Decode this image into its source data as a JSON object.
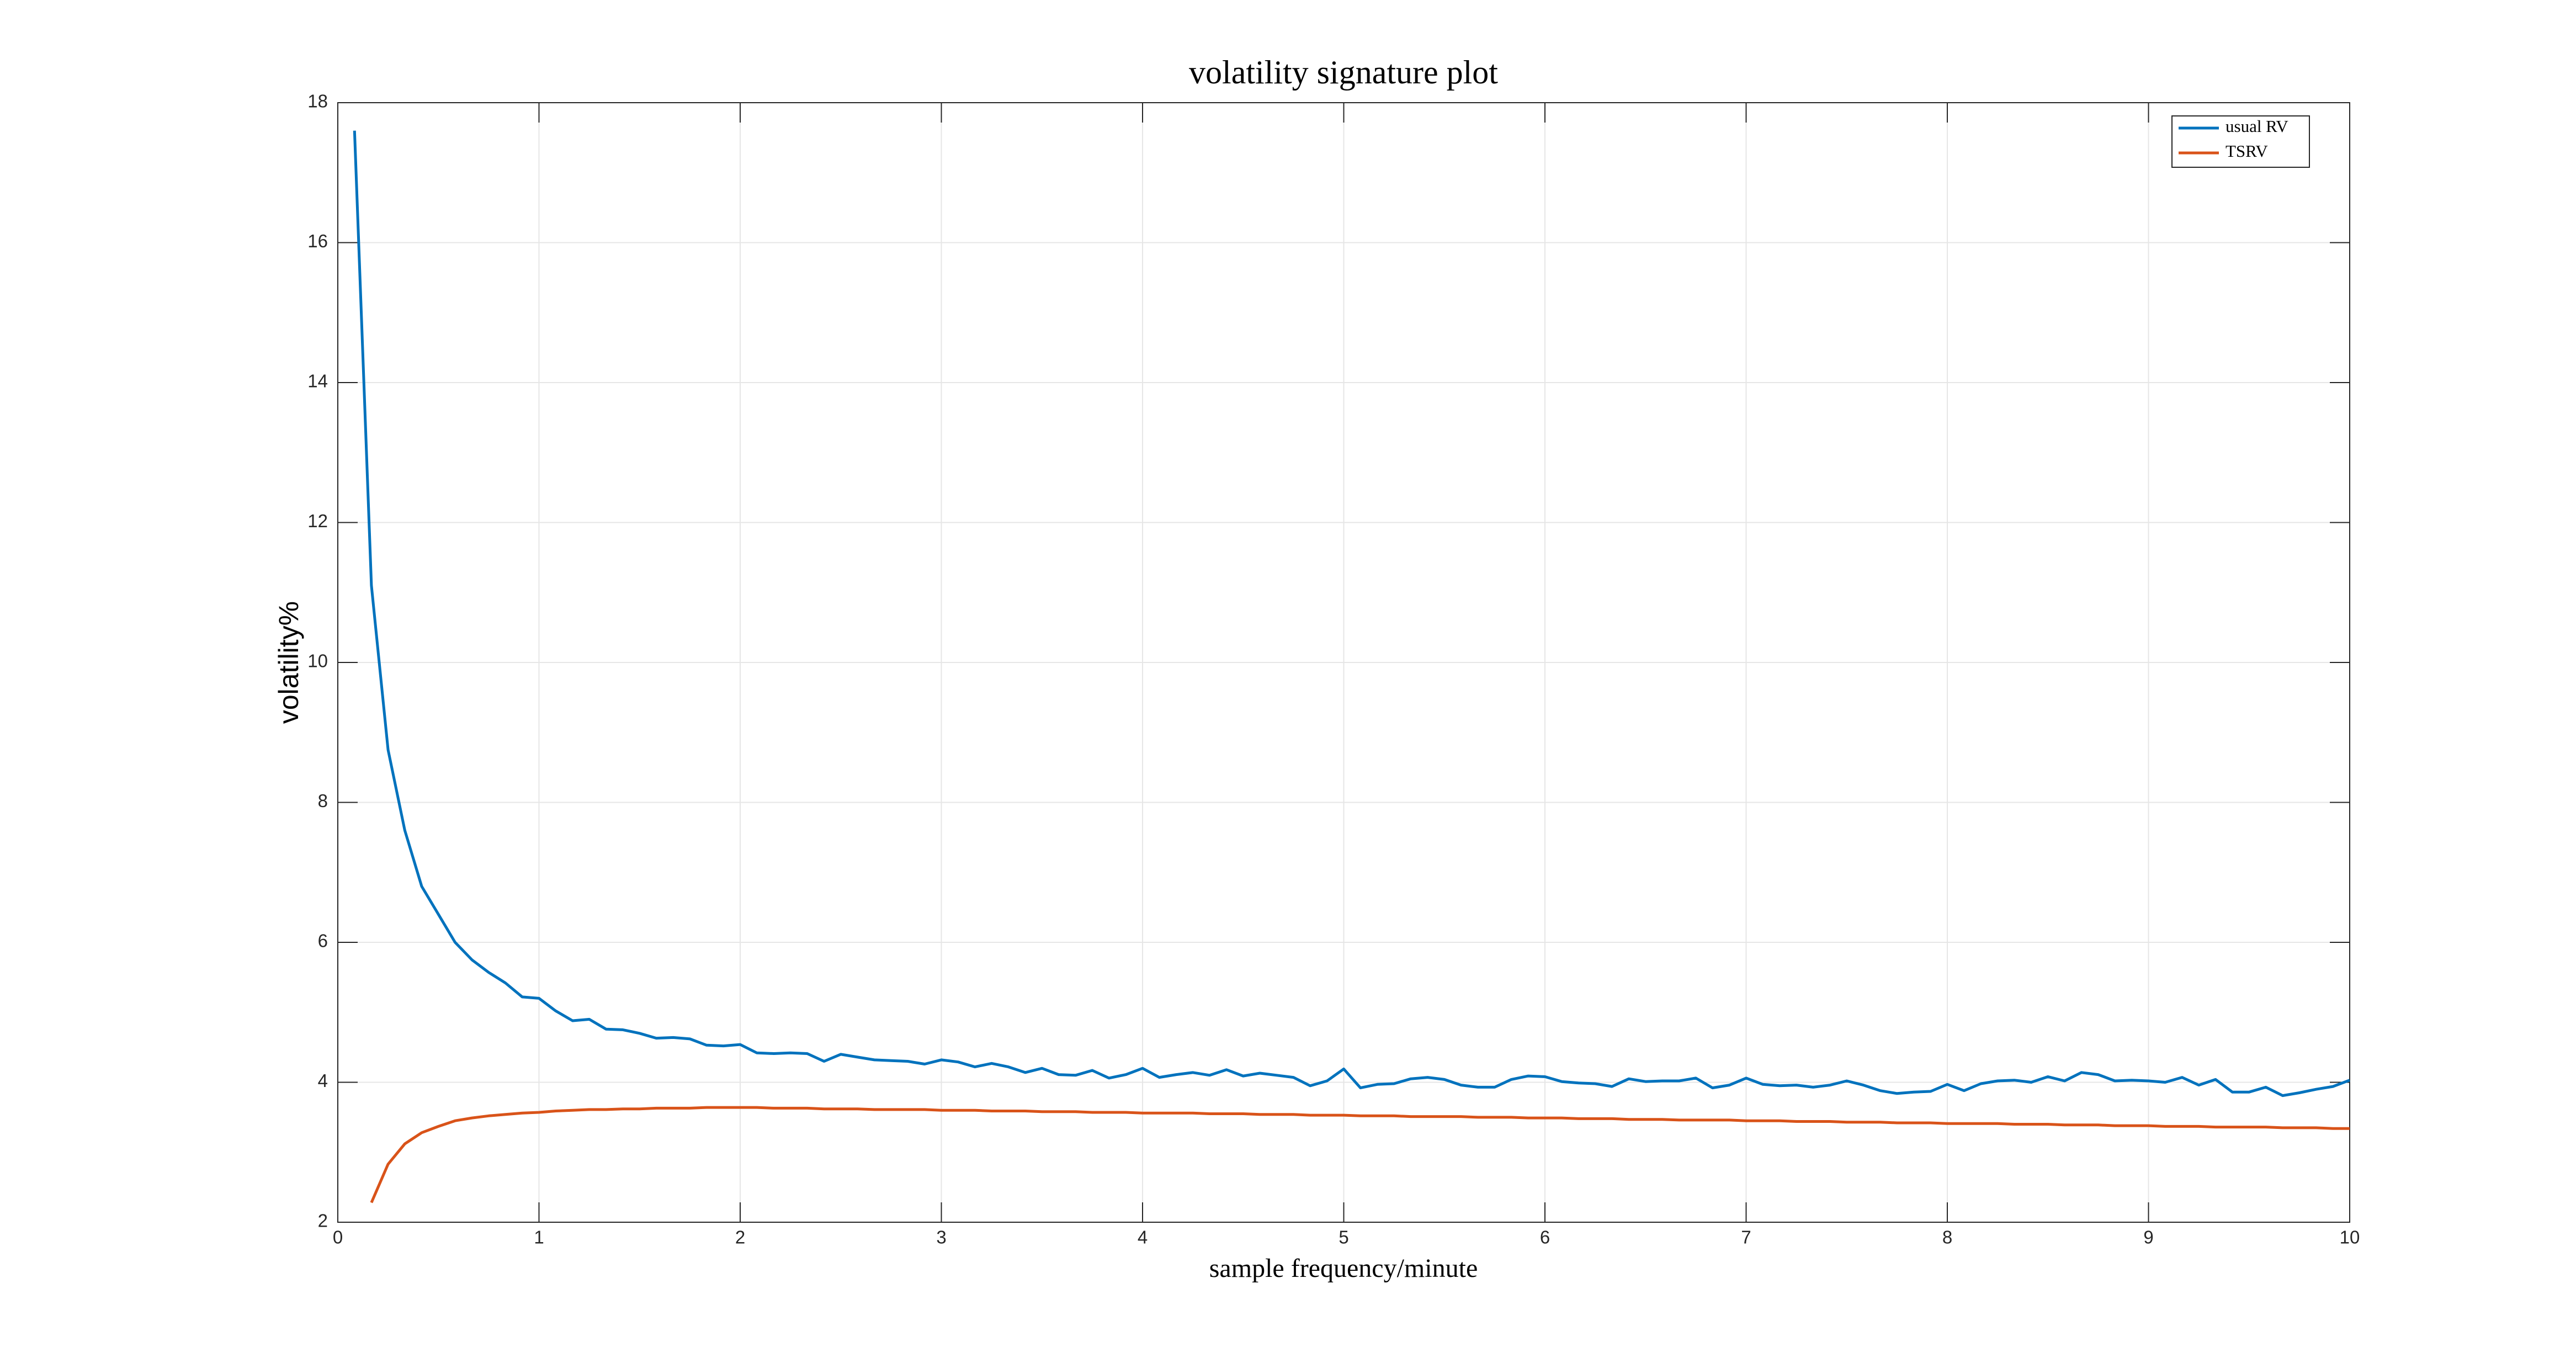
{
  "chart_data": {
    "type": "line",
    "title": "volatility signature plot",
    "x_label": "sample frequency/minute",
    "y_label": "volatility%",
    "x": [
      0.083,
      0.167,
      0.25,
      0.333,
      0.417,
      0.5,
      0.583,
      0.667,
      0.75,
      0.833,
      0.917,
      1,
      1.083,
      1.167,
      1.25,
      1.333,
      1.417,
      1.5,
      1.583,
      1.667,
      1.75,
      1.833,
      1.917,
      2,
      2.083,
      2.167,
      2.25,
      2.333,
      2.417,
      2.5,
      2.583,
      2.667,
      2.75,
      2.833,
      2.917,
      3,
      3.083,
      3.167,
      3.25,
      3.333,
      3.417,
      3.5,
      3.583,
      3.667,
      3.75,
      3.833,
      3.917,
      4,
      4.083,
      4.167,
      4.25,
      4.333,
      4.417,
      4.5,
      4.583,
      4.667,
      4.75,
      4.833,
      4.917,
      5,
      5.083,
      5.167,
      5.25,
      5.333,
      5.417,
      5.5,
      5.583,
      5.667,
      5.75,
      5.833,
      5.917,
      6,
      6.083,
      6.167,
      6.25,
      6.333,
      6.417,
      6.5,
      6.583,
      6.667,
      6.75,
      6.833,
      6.917,
      7,
      7.083,
      7.167,
      7.25,
      7.333,
      7.417,
      7.5,
      7.583,
      7.667,
      7.75,
      7.833,
      7.917,
      8,
      8.083,
      8.167,
      8.25,
      8.333,
      8.417,
      8.5,
      8.583,
      8.667,
      8.75,
      8.833,
      8.917,
      9,
      9.083,
      9.167,
      9.25,
      9.333,
      9.417,
      9.5,
      9.583,
      9.667,
      9.75,
      9.833,
      9.917,
      10
    ],
    "series": [
      {
        "name": "usual RV",
        "color": "#0072BD",
        "values": [
          17.6,
          11.1,
          8.75,
          7.6,
          6.8,
          6.4,
          6.0,
          5.75,
          5.57,
          5.42,
          5.22,
          5.2,
          5.02,
          4.88,
          4.9,
          4.76,
          4.75,
          4.7,
          4.63,
          4.64,
          4.62,
          4.53,
          4.52,
          4.54,
          4.42,
          4.41,
          4.42,
          4.41,
          4.3,
          4.4,
          4.36,
          4.32,
          4.31,
          4.3,
          4.26,
          4.32,
          4.29,
          4.22,
          4.27,
          4.22,
          4.14,
          4.2,
          4.11,
          4.1,
          4.17,
          4.06,
          4.11,
          4.2,
          4.07,
          4.11,
          4.14,
          4.1,
          4.18,
          4.09,
          4.13,
          4.1,
          4.07,
          3.95,
          4.02,
          4.19,
          3.92,
          3.97,
          3.98,
          4.05,
          4.07,
          4.04,
          3.96,
          3.93,
          3.93,
          4.04,
          4.09,
          4.08,
          4.01,
          3.99,
          3.98,
          3.94,
          4.05,
          4.01,
          4.02,
          4.02,
          4.06,
          3.92,
          3.96,
          4.06,
          3.97,
          3.95,
          3.96,
          3.93,
          3.96,
          4.02,
          3.96,
          3.88,
          3.84,
          3.86,
          3.87,
          3.97,
          3.88,
          3.98,
          4.02,
          4.03,
          4.0,
          4.08,
          4.02,
          4.14,
          4.11,
          4.02,
          4.03,
          4.02,
          4.0,
          4.07,
          3.96,
          4.04,
          3.86,
          3.86,
          3.93,
          3.81,
          3.85,
          3.9,
          3.94,
          4.03
        ]
      },
      {
        "name": "TSRV",
        "color": "#D95319",
        "values": [
          null,
          2.28,
          2.83,
          3.12,
          3.28,
          3.37,
          3.45,
          3.49,
          3.52,
          3.54,
          3.56,
          3.57,
          3.59,
          3.6,
          3.61,
          3.61,
          3.62,
          3.62,
          3.63,
          3.63,
          3.63,
          3.64,
          3.64,
          3.64,
          3.64,
          3.63,
          3.63,
          3.63,
          3.62,
          3.62,
          3.62,
          3.61,
          3.61,
          3.61,
          3.61,
          3.6,
          3.6,
          3.6,
          3.59,
          3.59,
          3.59,
          3.58,
          3.58,
          3.58,
          3.57,
          3.57,
          3.57,
          3.56,
          3.56,
          3.56,
          3.56,
          3.55,
          3.55,
          3.55,
          3.54,
          3.54,
          3.54,
          3.53,
          3.53,
          3.53,
          3.52,
          3.52,
          3.52,
          3.51,
          3.51,
          3.51,
          3.51,
          3.5,
          3.5,
          3.5,
          3.49,
          3.49,
          3.49,
          3.48,
          3.48,
          3.48,
          3.47,
          3.47,
          3.47,
          3.46,
          3.46,
          3.46,
          3.46,
          3.45,
          3.45,
          3.45,
          3.44,
          3.44,
          3.44,
          3.43,
          3.43,
          3.43,
          3.42,
          3.42,
          3.42,
          3.41,
          3.41,
          3.41,
          3.41,
          3.4,
          3.4,
          3.4,
          3.39,
          3.39,
          3.39,
          3.38,
          3.38,
          3.38,
          3.37,
          3.37,
          3.37,
          3.36,
          3.36,
          3.36,
          3.36,
          3.35,
          3.35,
          3.35,
          3.34,
          3.34
        ]
      }
    ],
    "xlim": [
      0,
      10
    ],
    "xticks": [
      0,
      1,
      2,
      3,
      4,
      5,
      6,
      7,
      8,
      9,
      10
    ],
    "ylim": [
      2,
      18
    ],
    "yticks": [
      2,
      4,
      6,
      8,
      10,
      12,
      14,
      16,
      18
    ],
    "grid": true,
    "legend": "northeast"
  }
}
